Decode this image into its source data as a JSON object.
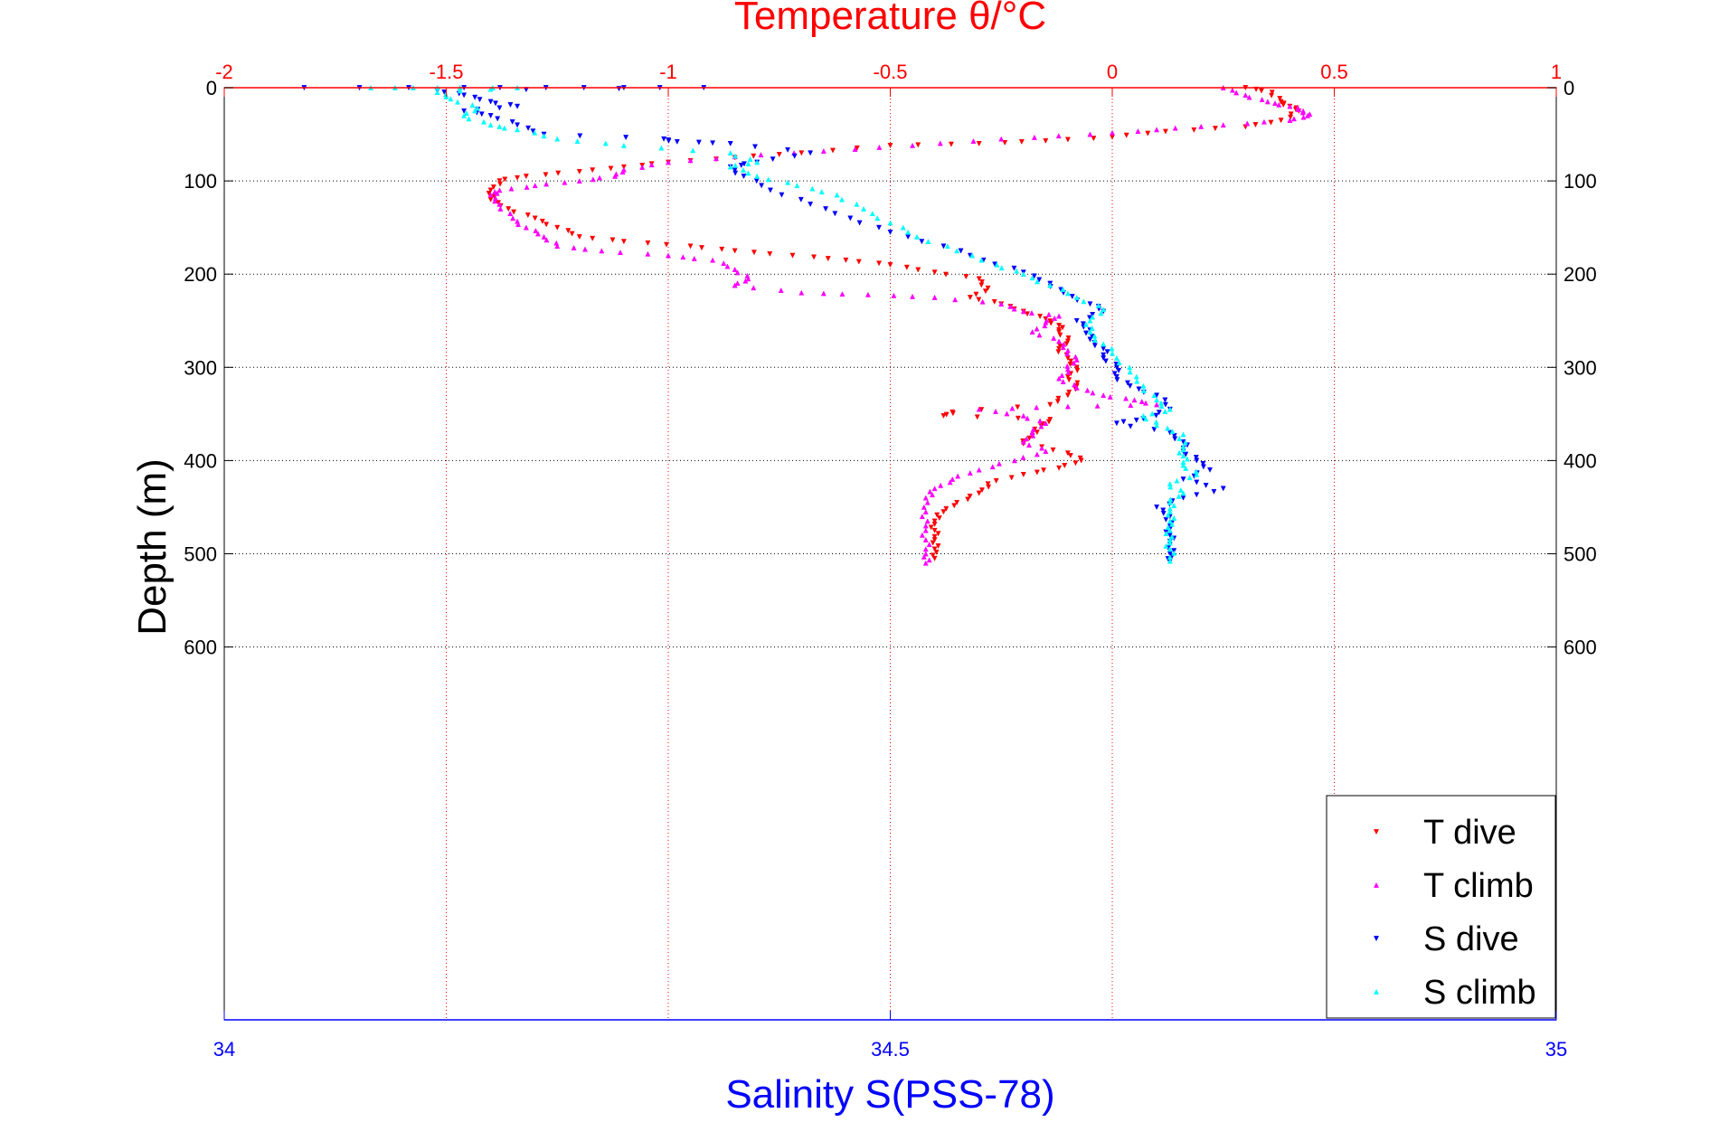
{
  "chart_data": {
    "type": "scatter",
    "title": "Temperature θ/°C",
    "xlabel": "Salinity S(PSS-78)",
    "ylabel": "Depth (m)",
    "x_temperature_range": [
      -2,
      1
    ],
    "x_temperature_ticks": [
      "-2",
      "-1.5",
      "-1",
      "-0.5",
      "0",
      "0.5",
      "1"
    ],
    "x_salinity_range": [
      34,
      35
    ],
    "x_salinity_ticks": [
      "34",
      "34.5",
      "35"
    ],
    "ylim": [
      0,
      1000
    ],
    "y_reversed": true,
    "y_ticks": [
      "0",
      "100",
      "200",
      "300",
      "400",
      "500",
      "600"
    ],
    "grid": true,
    "legend_position": "bottom-right",
    "colors": {
      "temperature_axis": "#ff0000",
      "salinity_axis": "#0000ff",
      "grid": "#000000"
    },
    "series": [
      {
        "name": "T dive",
        "axis": "temperature",
        "color": "#ff0000",
        "marker": "triangle-down",
        "points": [
          [
            0.3,
            0
          ],
          [
            0.36,
            5
          ],
          [
            0.38,
            15
          ],
          [
            0.4,
            20
          ],
          [
            0.42,
            25
          ],
          [
            0.38,
            35
          ],
          [
            0.3,
            42
          ],
          [
            0.12,
            47
          ],
          [
            0.0,
            53
          ],
          [
            -0.15,
            57
          ],
          [
            -0.3,
            60
          ],
          [
            -0.5,
            62
          ],
          [
            -0.7,
            70
          ],
          [
            -0.85,
            75
          ],
          [
            -1.0,
            80
          ],
          [
            -1.1,
            85
          ],
          [
            -1.2,
            90
          ],
          [
            -1.32,
            95
          ],
          [
            -1.38,
            100
          ],
          [
            -1.4,
            110
          ],
          [
            -1.4,
            120
          ],
          [
            -1.36,
            130
          ],
          [
            -1.3,
            140
          ],
          [
            -1.25,
            150
          ],
          [
            -1.2,
            160
          ],
          [
            -1.1,
            165
          ],
          [
            -0.95,
            170
          ],
          [
            -0.85,
            175
          ],
          [
            -0.72,
            180
          ],
          [
            -0.6,
            185
          ],
          [
            -0.5,
            190
          ],
          [
            -0.4,
            198
          ],
          [
            -0.3,
            205
          ],
          [
            -0.28,
            215
          ],
          [
            -0.32,
            225
          ],
          [
            -0.25,
            232
          ],
          [
            -0.2,
            240
          ],
          [
            -0.15,
            248
          ],
          [
            -0.12,
            255
          ],
          [
            -0.12,
            262
          ],
          [
            -0.1,
            272
          ],
          [
            -0.12,
            280
          ],
          [
            -0.1,
            290
          ],
          [
            -0.08,
            300
          ],
          [
            -0.1,
            310
          ],
          [
            -0.08,
            320
          ],
          [
            -0.1,
            330
          ],
          [
            -0.14,
            340
          ],
          [
            -0.36,
            348
          ],
          [
            -0.38,
            352
          ],
          [
            -0.14,
            356
          ],
          [
            -0.16,
            363
          ],
          [
            -0.18,
            373
          ],
          [
            -0.2,
            382
          ],
          [
            -0.1,
            392
          ],
          [
            -0.07,
            400
          ],
          [
            -0.12,
            408
          ],
          [
            -0.2,
            415
          ],
          [
            -0.28,
            425
          ],
          [
            -0.3,
            435
          ],
          [
            -0.35,
            445
          ],
          [
            -0.38,
            455
          ],
          [
            -0.4,
            465
          ],
          [
            -0.4,
            475
          ],
          [
            -0.4,
            485
          ],
          [
            -0.4,
            495
          ],
          [
            -0.4,
            505
          ]
        ]
      },
      {
        "name": "T climb",
        "axis": "temperature",
        "color": "#ff00ff",
        "marker": "triangle-up",
        "points": [
          [
            0.25,
            0
          ],
          [
            0.3,
            8
          ],
          [
            0.35,
            15
          ],
          [
            0.4,
            20
          ],
          [
            0.43,
            25
          ],
          [
            0.44,
            30
          ],
          [
            0.4,
            35
          ],
          [
            0.25,
            40
          ],
          [
            0.1,
            45
          ],
          [
            -0.05,
            50
          ],
          [
            -0.25,
            55
          ],
          [
            -0.45,
            62
          ],
          [
            -0.65,
            68
          ],
          [
            -0.85,
            74
          ],
          [
            -1.0,
            80
          ],
          [
            -1.1,
            88
          ],
          [
            -1.12,
            95
          ],
          [
            -1.2,
            100
          ],
          [
            -1.3,
            105
          ],
          [
            -1.38,
            110
          ],
          [
            -1.4,
            115
          ],
          [
            -1.38,
            125
          ],
          [
            -1.35,
            140
          ],
          [
            -1.32,
            150
          ],
          [
            -1.28,
            160
          ],
          [
            -1.25,
            170
          ],
          [
            -1.15,
            175
          ],
          [
            -1.0,
            180
          ],
          [
            -0.9,
            185
          ],
          [
            -0.85,
            195
          ],
          [
            -0.82,
            205
          ],
          [
            -0.85,
            212
          ],
          [
            -0.7,
            220
          ],
          [
            -0.55,
            222
          ],
          [
            -0.4,
            225
          ],
          [
            -0.25,
            232
          ],
          [
            -0.2,
            240
          ],
          [
            -0.12,
            245
          ],
          [
            -0.15,
            252
          ],
          [
            -0.18,
            262
          ],
          [
            -0.12,
            272
          ],
          [
            -0.1,
            282
          ],
          [
            -0.08,
            292
          ],
          [
            -0.1,
            302
          ],
          [
            -0.12,
            312
          ],
          [
            -0.08,
            322
          ],
          [
            -0.02,
            330
          ],
          [
            0.05,
            335
          ],
          [
            0.1,
            340
          ],
          [
            -0.1,
            342
          ],
          [
            -0.3,
            345
          ],
          [
            -0.2,
            352
          ],
          [
            -0.15,
            360
          ],
          [
            -0.18,
            370
          ],
          [
            -0.2,
            380
          ],
          [
            -0.15,
            390
          ],
          [
            -0.22,
            400
          ],
          [
            -0.3,
            410
          ],
          [
            -0.36,
            420
          ],
          [
            -0.4,
            430
          ],
          [
            -0.42,
            440
          ],
          [
            -0.42,
            455
          ],
          [
            -0.42,
            470
          ],
          [
            -0.42,
            485
          ],
          [
            -0.42,
            500
          ],
          [
            -0.42,
            510
          ]
        ]
      },
      {
        "name": "S dive",
        "axis": "salinity",
        "color": "#0000ff",
        "marker": "triangle-down",
        "points": [
          [
            34.06,
            0
          ],
          [
            34.18,
            0
          ],
          [
            34.27,
            0
          ],
          [
            34.36,
            0
          ],
          [
            34.16,
            3
          ],
          [
            34.18,
            8
          ],
          [
            34.2,
            15
          ],
          [
            34.22,
            20
          ],
          [
            34.18,
            25
          ],
          [
            34.2,
            30
          ],
          [
            34.22,
            40
          ],
          [
            34.24,
            50
          ],
          [
            34.33,
            55
          ],
          [
            34.34,
            58
          ],
          [
            34.38,
            60
          ],
          [
            34.44,
            70
          ],
          [
            34.4,
            80
          ],
          [
            34.38,
            85
          ],
          [
            34.39,
            95
          ],
          [
            34.41,
            110
          ],
          [
            34.44,
            125
          ],
          [
            34.47,
            140
          ],
          [
            34.5,
            155
          ],
          [
            34.54,
            170
          ],
          [
            34.57,
            185
          ],
          [
            34.6,
            198
          ],
          [
            34.62,
            210
          ],
          [
            34.63,
            220
          ],
          [
            34.65,
            232
          ],
          [
            34.66,
            240
          ],
          [
            34.64,
            250
          ],
          [
            34.65,
            260
          ],
          [
            34.65,
            270
          ],
          [
            34.66,
            280
          ],
          [
            34.66,
            290
          ],
          [
            34.67,
            300
          ],
          [
            34.67,
            310
          ],
          [
            34.68,
            320
          ],
          [
            34.7,
            330
          ],
          [
            34.71,
            345
          ],
          [
            34.69,
            355
          ],
          [
            34.67,
            360
          ],
          [
            34.71,
            370
          ],
          [
            34.72,
            380
          ],
          [
            34.72,
            390
          ],
          [
            34.73,
            400
          ],
          [
            34.74,
            410
          ],
          [
            34.72,
            420
          ],
          [
            34.75,
            430
          ],
          [
            34.72,
            440
          ],
          [
            34.7,
            450
          ],
          [
            34.71,
            460
          ],
          [
            34.71,
            470
          ],
          [
            34.71,
            480
          ],
          [
            34.71,
            490
          ],
          [
            34.71,
            500
          ],
          [
            34.71,
            508
          ]
        ]
      },
      {
        "name": "S climb",
        "axis": "salinity",
        "color": "#00ffff",
        "marker": "triangle-up",
        "points": [
          [
            34.11,
            0
          ],
          [
            34.16,
            0
          ],
          [
            34.22,
            0
          ],
          [
            34.16,
            5
          ],
          [
            34.17,
            12
          ],
          [
            34.19,
            22
          ],
          [
            34.18,
            30
          ],
          [
            34.2,
            40
          ],
          [
            34.22,
            45
          ],
          [
            34.25,
            55
          ],
          [
            34.3,
            62
          ],
          [
            34.38,
            70
          ],
          [
            34.4,
            80
          ],
          [
            34.38,
            85
          ],
          [
            34.4,
            95
          ],
          [
            34.43,
            105
          ],
          [
            34.46,
            115
          ],
          [
            34.48,
            130
          ],
          [
            34.5,
            145
          ],
          [
            34.52,
            160
          ],
          [
            34.55,
            175
          ],
          [
            34.58,
            190
          ],
          [
            34.6,
            200
          ],
          [
            34.62,
            212
          ],
          [
            34.64,
            225
          ],
          [
            34.66,
            238
          ],
          [
            34.65,
            250
          ],
          [
            34.65,
            262
          ],
          [
            34.66,
            275
          ],
          [
            34.67,
            290
          ],
          [
            34.68,
            305
          ],
          [
            34.69,
            320
          ],
          [
            34.7,
            335
          ],
          [
            34.71,
            345
          ],
          [
            34.69,
            352
          ],
          [
            34.7,
            362
          ],
          [
            34.72,
            372
          ],
          [
            34.72,
            385
          ],
          [
            34.72,
            395
          ],
          [
            34.72,
            405
          ],
          [
            34.73,
            415
          ],
          [
            34.71,
            425
          ],
          [
            34.72,
            435
          ],
          [
            34.71,
            445
          ],
          [
            34.71,
            455
          ],
          [
            34.71,
            465
          ],
          [
            34.71,
            475
          ],
          [
            34.71,
            485
          ],
          [
            34.71,
            495
          ],
          [
            34.71,
            508
          ]
        ]
      }
    ]
  }
}
